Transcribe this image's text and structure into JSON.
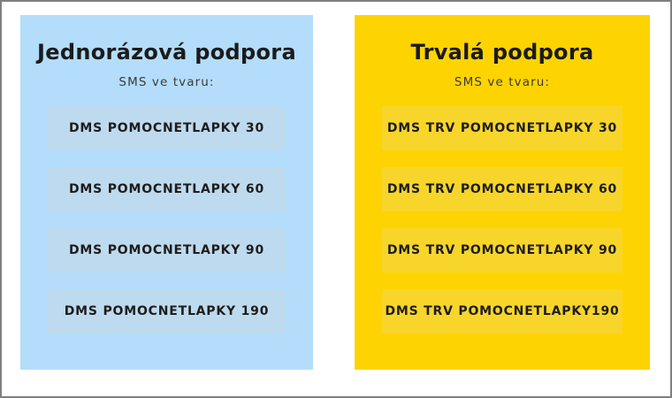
{
  "panels": [
    {
      "title": "Jednorázová podpora",
      "subtitle": "SMS ve tvaru:",
      "bg_color": "#b3ddfa",
      "box_color": "#bedaee",
      "items": [
        "DMS POMOCNETLAPKY 30",
        "DMS POMOCNETLAPKY 60",
        "DMS POMOCNETLAPKY 90",
        "DMS POMOCNETLAPKY 190"
      ]
    },
    {
      "title": "Trvalá podpora",
      "subtitle": "SMS ve tvaru:",
      "bg_color": "#fdd402",
      "box_color": "#f8d52a",
      "items": [
        "DMS TRV POMOCNETLAPKY 30",
        "DMS TRV POMOCNETLAPKY 60",
        "DMS TRV POMOCNETLAPKY 90",
        "DMS TRV POMOCNETLAPKY190"
      ]
    }
  ],
  "frame": {
    "border_color": "#7f7f7f"
  }
}
